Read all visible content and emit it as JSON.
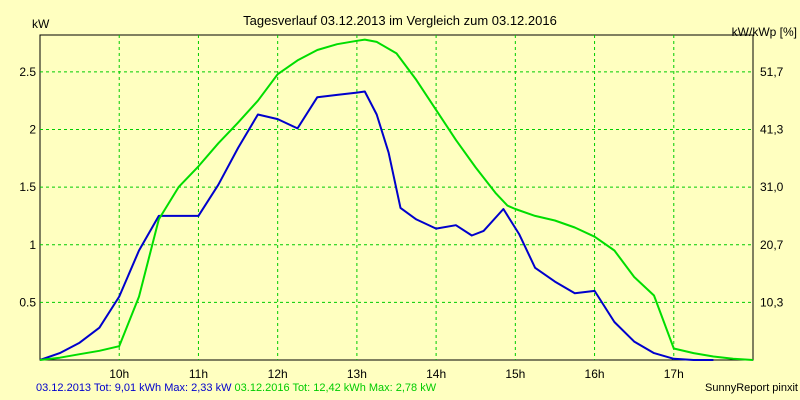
{
  "chart_data": {
    "type": "line",
    "title": "Tagesverlauf 03.12.2013 im Vergleich zum 03.12.2016",
    "ylabel": "kW",
    "ylabel_right": "kW/kWp [%]",
    "xlim": [
      9.0,
      18.0
    ],
    "ylim": [
      0,
      2.82
    ],
    "grid": true,
    "x_ticks": [
      10,
      11,
      12,
      13,
      14,
      15,
      16,
      17
    ],
    "x_tick_labels": [
      "10h",
      "11h",
      "12h",
      "13h",
      "14h",
      "15h",
      "16h",
      "17h"
    ],
    "y_ticks": [
      0.5,
      1,
      1.5,
      2,
      2.5
    ],
    "y_tick_labels": [
      "0.5",
      "1",
      "1.5",
      "2",
      "2.5"
    ],
    "y_right_tick_labels": [
      "10,3",
      "20,7",
      "31,0",
      "41,3",
      "51,7"
    ],
    "series": [
      {
        "name": "03.12.2013",
        "color": "#0000cc",
        "legend": "03.12.2013 Tot: 9,01 kWh Max: 2,33 kW",
        "x": [
          9.0,
          9.25,
          9.5,
          9.75,
          10.0,
          10.25,
          10.5,
          10.75,
          11.0,
          11.25,
          11.5,
          11.75,
          12.0,
          12.25,
          12.5,
          12.75,
          13.0,
          13.1,
          13.25,
          13.4,
          13.55,
          13.75,
          14.0,
          14.25,
          14.45,
          14.6,
          14.85,
          15.05,
          15.25,
          15.5,
          15.75,
          16.0,
          16.25,
          16.5,
          16.75,
          17.0,
          17.25,
          17.5
        ],
        "values": [
          0.0,
          0.06,
          0.15,
          0.28,
          0.55,
          0.95,
          1.25,
          1.25,
          1.25,
          1.52,
          1.84,
          2.13,
          2.09,
          2.01,
          2.28,
          2.3,
          2.32,
          2.33,
          2.13,
          1.8,
          1.32,
          1.22,
          1.14,
          1.17,
          1.08,
          1.12,
          1.31,
          1.09,
          0.8,
          0.68,
          0.58,
          0.6,
          0.33,
          0.16,
          0.06,
          0.01,
          0.0,
          0.0
        ]
      },
      {
        "name": "03.12.2016",
        "color": "#00dd00",
        "legend": "03.12.2016 Tot: 12,42 kWh Max: 2,78 kW",
        "x": [
          9.0,
          9.25,
          9.5,
          9.75,
          10.0,
          10.25,
          10.5,
          10.75,
          11.0,
          11.25,
          11.5,
          11.75,
          12.0,
          12.25,
          12.5,
          12.75,
          13.0,
          13.1,
          13.25,
          13.5,
          13.75,
          14.0,
          14.25,
          14.5,
          14.75,
          14.9,
          15.0,
          15.25,
          15.5,
          15.75,
          16.0,
          16.25,
          16.5,
          16.75,
          17.0,
          17.25,
          17.5,
          17.75,
          18.0
        ],
        "values": [
          0.0,
          0.02,
          0.05,
          0.08,
          0.12,
          0.55,
          1.22,
          1.5,
          1.68,
          1.88,
          2.06,
          2.25,
          2.48,
          2.6,
          2.69,
          2.74,
          2.77,
          2.78,
          2.76,
          2.66,
          2.43,
          2.17,
          1.91,
          1.67,
          1.45,
          1.34,
          1.31,
          1.25,
          1.21,
          1.15,
          1.07,
          0.95,
          0.72,
          0.56,
          0.1,
          0.06,
          0.03,
          0.01,
          0.0
        ]
      }
    ]
  },
  "footer": {
    "series1_text": "03.12.2013 Tot: 9,01 kWh Max: 2,33 kW",
    "series2_text": "03.12.2016 Tot: 12,42 kWh Max: 2,78 kW",
    "credit": "SunnyReport pinxit"
  }
}
